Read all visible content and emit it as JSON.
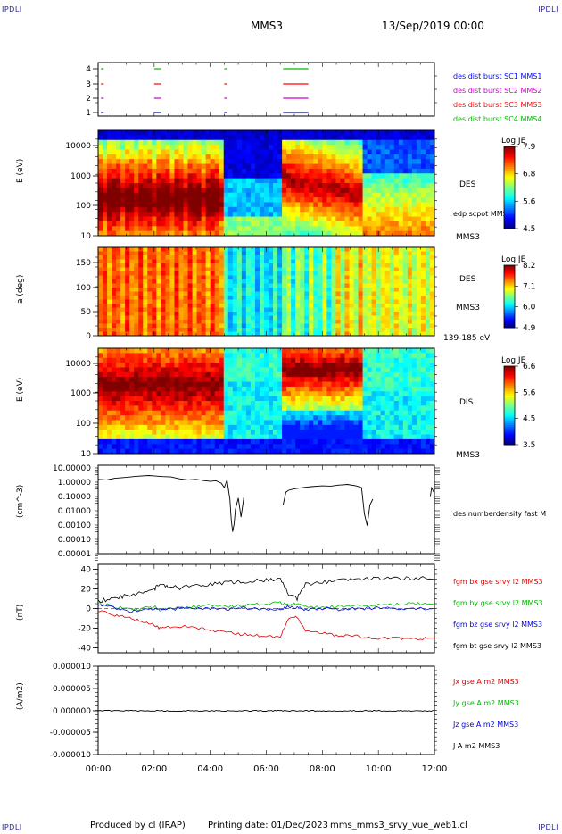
{
  "header": {
    "corner_label": "IPDLI",
    "spacecraft": "MMS3",
    "datetime": "13/Sep/2019 00:00"
  },
  "footer": {
    "produced_by": "Produced by cl (IRAP)",
    "printing_date": "Printing date: 01/Dec/2023",
    "filename": "mms_mms3_srvy_vue_web1.cl"
  },
  "time_axis": {
    "ticks": [
      "00:00",
      "02:00",
      "04:00",
      "06:00",
      "08:00",
      "10:00",
      "12:00"
    ],
    "range_hours": [
      0,
      12
    ]
  },
  "colors": {
    "mms1": "#0000ff",
    "mms2": "#cc00cc",
    "mms3": "#ff0000",
    "mms4": "#00bb00",
    "bx": "#dd0000",
    "by": "#00bb00",
    "bz": "#0000dd",
    "bt": "#000000"
  },
  "chart_data": [
    {
      "type": "line",
      "panel": "availability",
      "yticks": [
        "4",
        "3",
        "2",
        "1"
      ],
      "legend": [
        "des dist burst SC1 MMS1",
        "des dist burst SC2 MMS2",
        "des dist burst SC3 MMS3",
        "des dist burst SC4 MMS4"
      ],
      "intervals_hours": [
        [
          0.1,
          0.2
        ],
        [
          2.0,
          2.25
        ],
        [
          4.5,
          4.6
        ],
        [
          6.6,
          7.5
        ]
      ]
    },
    {
      "type": "heatmap",
      "panel": "des-energy",
      "ylabel": "E (eV)",
      "yscale": "log",
      "ylim": [
        10,
        30000
      ],
      "yticks": [
        "10000",
        "1000",
        "100",
        "10"
      ],
      "side_labels": [
        "DES",
        "edp scpot MMS3",
        "MMS3"
      ],
      "colorbar": {
        "title": "Log JE",
        "ticks": [
          "7.9",
          "6.8",
          "5.6",
          "4.5"
        ]
      }
    },
    {
      "type": "heatmap",
      "panel": "des-pitch",
      "ylabel": "a (deg)",
      "ylim": [
        0,
        180
      ],
      "yticks": [
        "150",
        "100",
        "50",
        "0"
      ],
      "side_labels": [
        "DES",
        "MMS3",
        "139-185 eV"
      ],
      "colorbar": {
        "title": "Log JE",
        "ticks": [
          "8.2",
          "7.1",
          "6.0",
          "4.9"
        ]
      }
    },
    {
      "type": "heatmap",
      "panel": "dis-energy",
      "ylabel": "E (eV)",
      "yscale": "log",
      "ylim": [
        10,
        30000
      ],
      "yticks": [
        "10000",
        "1000",
        "100",
        "10"
      ],
      "side_labels": [
        "DIS",
        "MMS3"
      ],
      "colorbar": {
        "title": "Log JE",
        "ticks": [
          "6.6",
          "5.6",
          "4.5",
          "3.5"
        ]
      }
    },
    {
      "type": "line",
      "panel": "density",
      "ylabel": "(cm^-3)",
      "yscale": "log",
      "ylim": [
        0.0001,
        10
      ],
      "yticks": [
        "10.00000",
        "1.00000",
        "0.10000",
        "0.01000",
        "0.00100",
        "0.00010",
        "0.00001"
      ],
      "legend": [
        "des numberdensity fast M"
      ],
      "series": [
        {
          "x": [
            0,
            0.3,
            0.6,
            1.0,
            1.4,
            1.8,
            2.0,
            2.3,
            2.6,
            2.9,
            3.2,
            3.5,
            3.8,
            4.0,
            4.2,
            4.4,
            4.5,
            4.6,
            4.7,
            4.75,
            4.8,
            4.85,
            4.9,
            5.0,
            5.1,
            5.2,
            5.3,
            6.5,
            6.6,
            6.7,
            6.8,
            7.0,
            7.3,
            7.6,
            8.0,
            8.3,
            8.6,
            8.9,
            9.2,
            9.4,
            9.5,
            9.6,
            9.7,
            9.8,
            10.0,
            11.8,
            11.85,
            11.9,
            12.0
          ],
          "y": [
            1.1,
            1.0,
            1.3,
            1.5,
            1.8,
            2.0,
            1.9,
            1.7,
            1.6,
            1.2,
            1.0,
            1.1,
            0.9,
            0.8,
            0.9,
            0.6,
            0.3,
            1.0,
            0.05,
            0.002,
            0.0003,
            0.001,
            0.01,
            0.06,
            0.003,
            0.07,
            null,
            null,
            0.02,
            0.15,
            0.2,
            0.25,
            0.3,
            0.35,
            0.4,
            0.38,
            0.45,
            0.5,
            0.4,
            0.3,
            0.005,
            0.0008,
            0.02,
            0.05,
            null,
            null,
            0.07,
            0.3,
            0.12
          ]
        }
      ]
    },
    {
      "type": "line",
      "panel": "magnetic-field",
      "ylabel": "(nT)",
      "ylim": [
        -45,
        45
      ],
      "yticks": [
        "40",
        "20",
        "0",
        "-20",
        "-40"
      ],
      "legend": [
        "fgm bx gse srvy l2 MMS3",
        "fgm by gse srvy l2 MMS3",
        "fgm bz gse srvy l2 MMS3",
        "fgm bt gse srvy l2 MMS3"
      ],
      "x": [
        0,
        0.4,
        0.8,
        1.2,
        1.6,
        2.0,
        2.2,
        2.5,
        3.0,
        3.5,
        4.0,
        4.5,
        5.0,
        5.5,
        6.0,
        6.5,
        6.8,
        7.1,
        7.4,
        8.0,
        8.5,
        9.0,
        9.5,
        10.0,
        10.5,
        11.0,
        11.5,
        12.0
      ],
      "series": [
        {
          "name": "fgm bx gse srvy l2 MMS3",
          "values": [
            -2,
            -5,
            -8,
            -10,
            -14,
            -16,
            -20,
            -19,
            -18,
            -20,
            -22,
            -24,
            -26,
            -27,
            -28,
            -29,
            -10,
            -8,
            -22,
            -25,
            -27,
            -28,
            -29,
            -30,
            -30,
            -31,
            -31,
            -30
          ]
        },
        {
          "name": "fgm by gse srvy l2 MMS3",
          "values": [
            6,
            3,
            1,
            -1,
            0,
            2,
            -2,
            0,
            1,
            2,
            3,
            2,
            3,
            4,
            5,
            6,
            3,
            5,
            2,
            1,
            2,
            3,
            3,
            4,
            4,
            5,
            5,
            5
          ]
        },
        {
          "name": "fgm bz gse srvy l2 MMS3",
          "values": [
            4,
            2,
            0,
            -3,
            -1,
            0,
            1,
            -1,
            0,
            1,
            0,
            -1,
            1,
            0,
            -1,
            0,
            2,
            1,
            -1,
            0,
            -1,
            0,
            0,
            1,
            0,
            0,
            0,
            0
          ]
        },
        {
          "name": "fgm bt gse srvy l2 MMS3",
          "values": [
            8,
            9,
            12,
            14,
            17,
            20,
            24,
            22,
            21,
            23,
            25,
            26,
            27,
            28,
            29,
            30,
            14,
            10,
            25,
            27,
            28,
            29,
            30,
            31,
            31,
            31,
            31,
            30
          ]
        }
      ]
    },
    {
      "type": "line",
      "panel": "current-density",
      "ylabel": "(A/m2)",
      "ylim": [
        -1e-05,
        1e-05
      ],
      "yticks": [
        "0.000010",
        "0.000005",
        "0.000000",
        "-0.000005",
        "-0.000010"
      ],
      "legend": [
        "Jx gse A m2 MMS3",
        "Jy gse A m2 MMS3",
        "Jz gse A m2 MMS3",
        "J A m2 MMS3"
      ],
      "series": [
        {
          "name": "J A m2 MMS3",
          "x": [
            0,
            12
          ],
          "y": [
            0,
            0
          ]
        }
      ]
    }
  ]
}
